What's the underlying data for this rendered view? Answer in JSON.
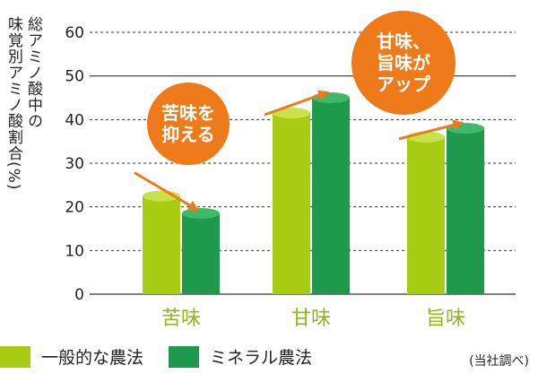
{
  "chart_data": {
    "type": "bar",
    "ylabel": "総アミノ酸中の\n味覚別アミノ酸割合(%)",
    "ylim": [
      0,
      60
    ],
    "yticks": [
      0,
      10,
      20,
      30,
      40,
      50,
      60
    ],
    "grid": true,
    "categories": [
      "苦味",
      "甘味",
      "旨味"
    ],
    "series": [
      {
        "name": "一般的な農法",
        "values": [
          22.5,
          41.5,
          36
        ]
      },
      {
        "name": "ミネラル農法",
        "values": [
          18.5,
          45,
          38
        ]
      }
    ],
    "annotations": [
      "苦味を\n抑える",
      "甘味、\n旨味が\nアップ"
    ],
    "legend_position": "bottom-left",
    "note": "(当社調べ)"
  },
  "colors": {
    "series_light": "#a8cc12",
    "series_light_top": "#c9e24a",
    "series_dark": "#1f9a4c",
    "series_dark_top": "#3fb86a",
    "accent": "#ee7a1a",
    "category_text": "#8cb81a"
  }
}
